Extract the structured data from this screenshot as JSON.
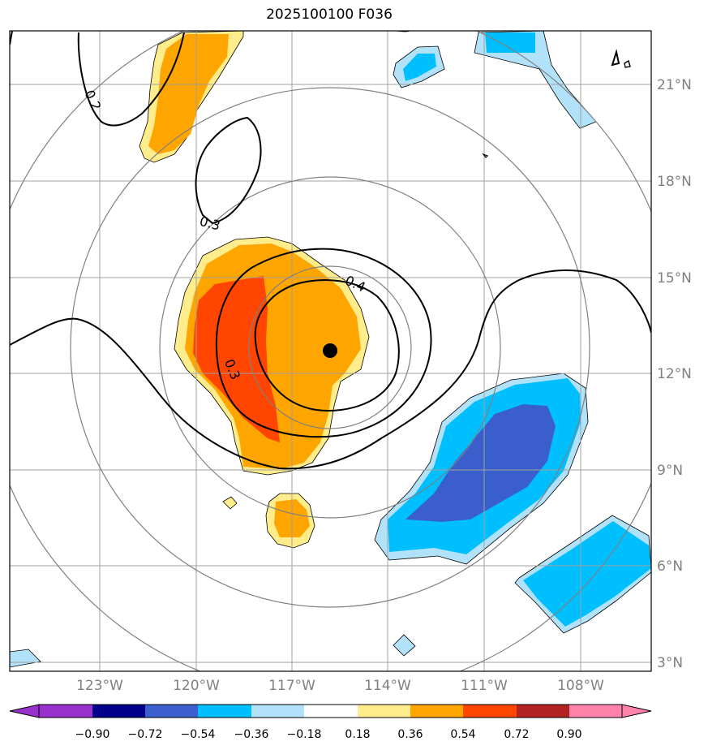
{
  "title": "2025100100 F036",
  "latitudes": [
    "21°N",
    "18°N",
    "15°N",
    "12°N",
    "9°N",
    "6°N",
    "3°N"
  ],
  "longitudes": [
    "123°W",
    "120°W",
    "117°W",
    "114°W",
    "111°W",
    "108°W"
  ],
  "contour_labels": [
    "0.2",
    "0.3",
    "0.4",
    "0.3"
  ],
  "colorbar": {
    "ticks": [
      "−0.90",
      "−0.72",
      "−0.54",
      "−0.36",
      "−0.18",
      "0.18",
      "0.36",
      "0.54",
      "0.72",
      "0.90"
    ],
    "colors": [
      "#9932cc",
      "#00008b",
      "#3a5fcd",
      "#00bfff",
      "#b2e2f9",
      "#ffffff",
      "#ffec8b",
      "#ffa500",
      "#ff4500",
      "#b22222",
      "#ff82ab"
    ]
  },
  "colors": {
    "grid": "#a0a0a0",
    "range_rings": "#808080",
    "contour": "#000000",
    "center_marker": "#000000"
  }
}
